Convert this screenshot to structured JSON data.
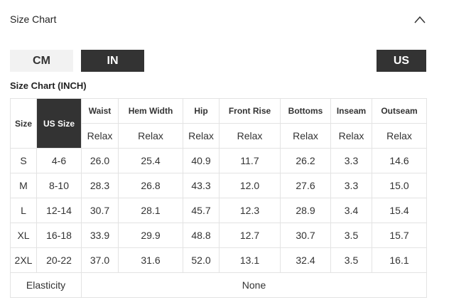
{
  "header": {
    "title": "Size Chart"
  },
  "tabs": [
    "CM",
    "IN"
  ],
  "region": "US",
  "subtitle": "Size Chart (INCH)",
  "table": {
    "header": [
      "Size",
      "US Size",
      "Waist",
      "Hem Width",
      "Hip",
      "Front Rise",
      "Bottoms",
      "Inseam",
      "Outseam"
    ],
    "subheader": [
      "Relax",
      "Relax",
      "Relax",
      "Relax",
      "Relax",
      "Relax",
      "Relax"
    ],
    "rows": [
      [
        "S",
        "4-6",
        "26.0",
        "25.4",
        "40.9",
        "11.7",
        "26.2",
        "3.3",
        "14.6"
      ],
      [
        "M",
        "8-10",
        "28.3",
        "26.8",
        "43.3",
        "12.0",
        "27.6",
        "3.3",
        "15.0"
      ],
      [
        "L",
        "12-14",
        "30.7",
        "28.1",
        "45.7",
        "12.3",
        "28.9",
        "3.4",
        "15.4"
      ],
      [
        "XL",
        "16-18",
        "33.9",
        "29.9",
        "48.8",
        "12.7",
        "30.7",
        "3.5",
        "15.7"
      ],
      [
        "2XL",
        "20-22",
        "37.0",
        "31.6",
        "52.0",
        "13.1",
        "32.4",
        "3.5",
        "16.1"
      ]
    ],
    "footer": [
      "Elasticity",
      "None"
    ]
  }
}
